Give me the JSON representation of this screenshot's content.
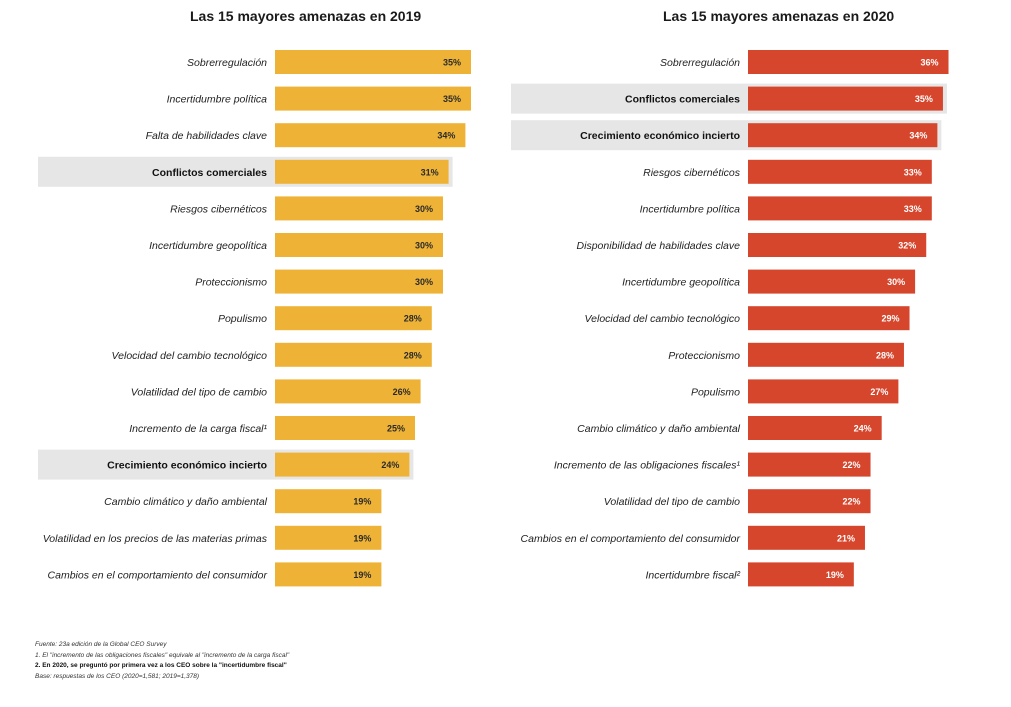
{
  "chart_data": [
    {
      "type": "bar",
      "orientation": "horizontal",
      "title": "Las 15 mayores amenazas en 2019",
      "color": "#EEB336",
      "highlight_color": "#E6E6E6",
      "value_label_color": "#2a2a2a",
      "categories": [
        "Sobrerregulación",
        "Incertidumbre política",
        "Falta de habilidades clave",
        "Conflictos comerciales",
        "Riesgos cibernéticos",
        "Incertidumbre geopolítica",
        "Proteccionismo",
        "Populismo",
        "Velocidad del cambio tecnológico",
        "Volatilidad del tipo de cambio",
        "Incremento de la carga fiscal¹",
        "Crecimiento económico incierto",
        "Cambio climático y daño ambiental",
        "Volatilidad en los precios de las materias primas",
        "Cambios en el comportamiento del consumidor"
      ],
      "values": [
        35,
        35,
        34,
        31,
        30,
        30,
        30,
        28,
        28,
        26,
        25,
        24,
        19,
        19,
        19
      ],
      "value_labels": [
        "35%",
        "35%",
        "34%",
        "31%",
        "30%",
        "30%",
        "30%",
        "28%",
        "28%",
        "26%",
        "25%",
        "24%",
        "19%",
        "19%",
        "19%"
      ],
      "highlighted": [
        "Conflictos comerciales",
        "Crecimiento económico incierto"
      ],
      "unit": "%"
    },
    {
      "type": "bar",
      "orientation": "horizontal",
      "title": "Las 15 mayores amenazas en 2020",
      "color": "#D5462D",
      "highlight_color": "#E6E6E6",
      "value_label_color": "#ffffff",
      "categories": [
        "Sobrerregulación",
        "Conflictos comerciales",
        "Crecimiento económico incierto",
        "Riesgos cibernéticos",
        "Incertidumbre política",
        "Disponibilidad de habilidades clave",
        "Incertidumbre geopolítica",
        "Velocidad del cambio tecnológico",
        "Proteccionismo",
        "Populismo",
        "Cambio climático y daño ambiental",
        "Incremento de las obligaciones fiscales¹",
        "Volatilidad del tipo de cambio",
        "Cambios en el comportamiento del consumidor",
        "Incertidumbre fiscal²"
      ],
      "values": [
        36,
        35,
        34,
        33,
        33,
        32,
        30,
        29,
        28,
        27,
        24,
        22,
        22,
        21,
        19
      ],
      "value_labels": [
        "36%",
        "35%",
        "34%",
        "33%",
        "33%",
        "32%",
        "30%",
        "29%",
        "28%",
        "27%",
        "24%",
        "22%",
        "22%",
        "21%",
        "19%"
      ],
      "highlighted": [
        "Conflictos comerciales",
        "Crecimiento económico incierto"
      ],
      "unit": "%"
    }
  ],
  "footnotes": {
    "source": "Fuente: 23a edición de la Global CEO Survey",
    "note1": "1. El \"incremento de las obligaciones fiscales\" equivale al \"incremento de la carga fiscal\"",
    "note2": "2. En 2020, se preguntó por primera vez a los CEO sobre la \"incertidumbre fiscal\"",
    "base": "Base: respuestas de los CEO (2020=1,581; 2019=1,378)"
  }
}
